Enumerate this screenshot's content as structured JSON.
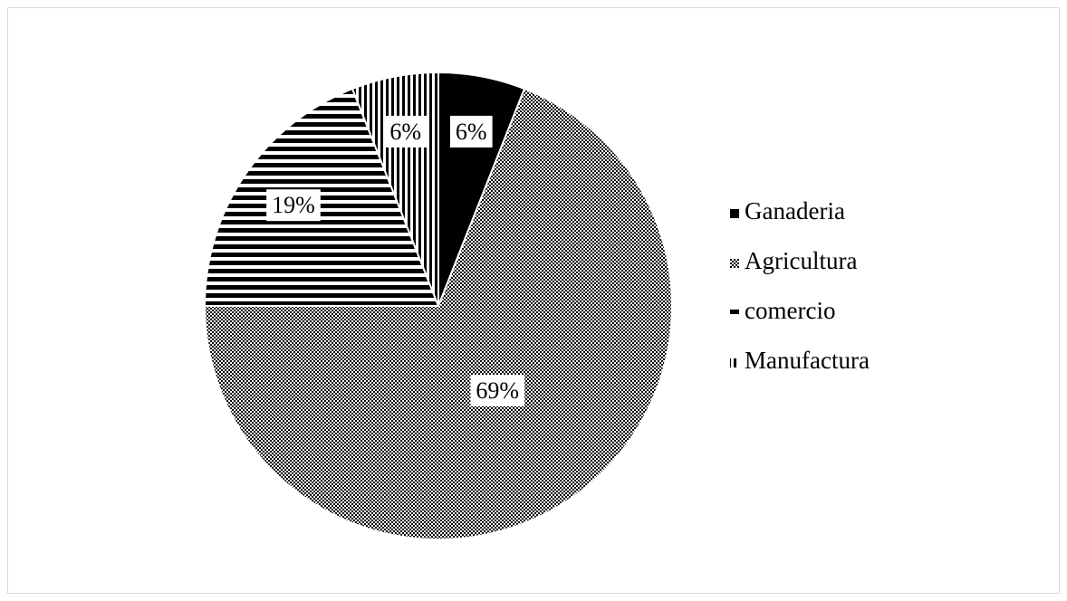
{
  "chart_data": {
    "type": "pie",
    "categories": [
      "Ganaderia",
      "Agricultura",
      "comercio",
      "Manufactura"
    ],
    "values": [
      6,
      69,
      19,
      6
    ],
    "value_labels": [
      "6%",
      "69%",
      "19%",
      "6%"
    ],
    "patterns": [
      "solid",
      "dots",
      "horizontal",
      "vertical"
    ],
    "legend": "right"
  }
}
